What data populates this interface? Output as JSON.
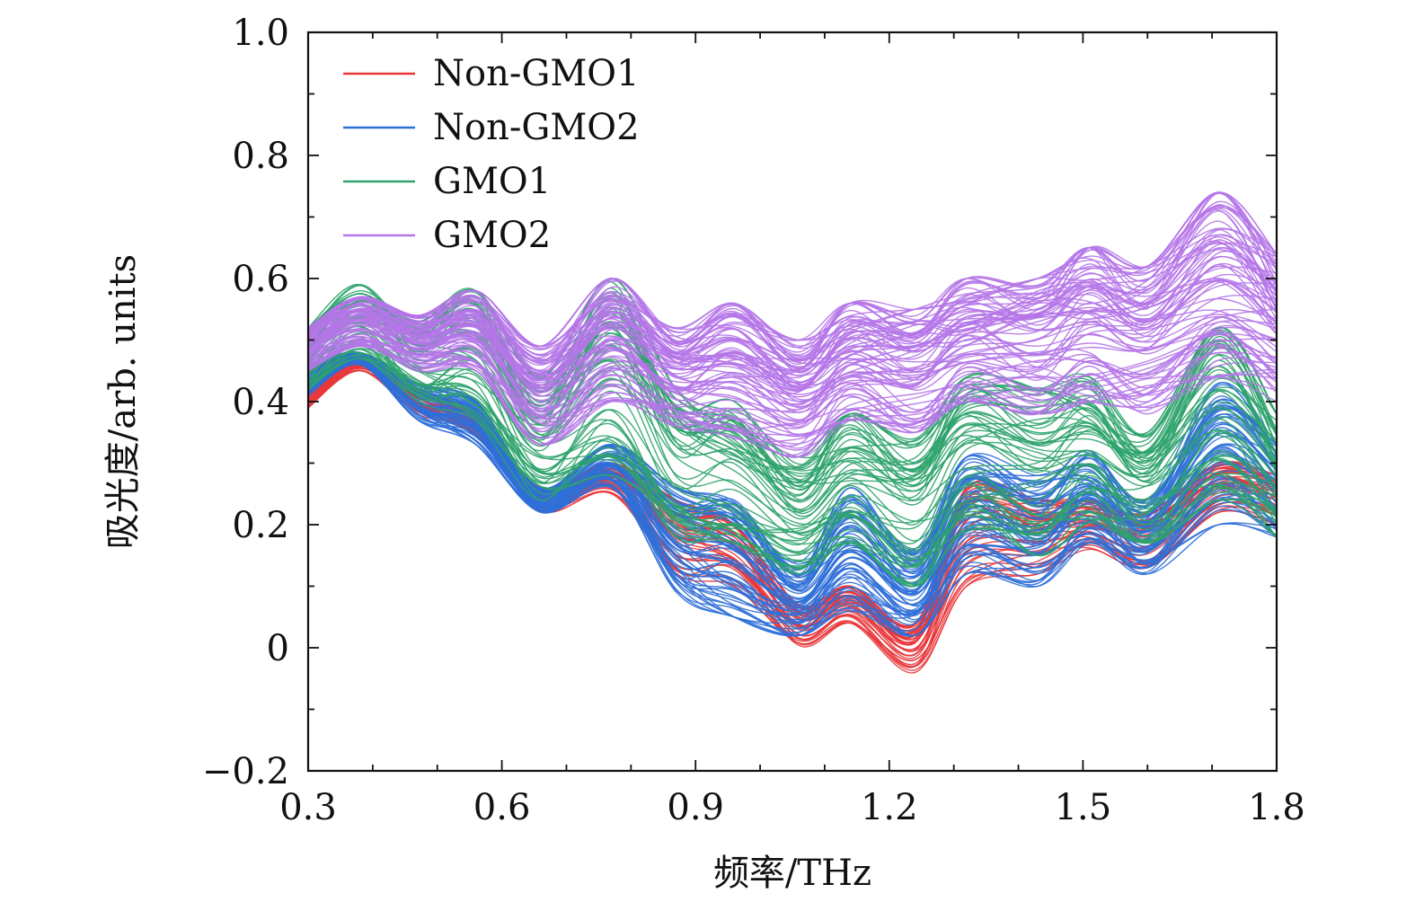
{
  "chart_data": {
    "type": "line",
    "title": "",
    "xlabel": "频率/THz",
    "ylabel": "吸光度/arb. units",
    "xlim": [
      0.3,
      1.8
    ],
    "ylim": [
      -0.2,
      1.0
    ],
    "x_ticks": [
      "0.3",
      "0.6",
      "0.9",
      "1.2",
      "1.5",
      "1.8"
    ],
    "y_ticks": [
      "−0.2",
      "0",
      "0.2",
      "0.4",
      "0.6",
      "0.8",
      "1.0"
    ],
    "y_tick_values": [
      -0.2,
      0,
      0.2,
      0.4,
      0.6,
      0.8,
      1.0
    ],
    "x_tick_values": [
      0.3,
      0.6,
      0.9,
      1.2,
      1.5,
      1.8
    ],
    "grid": false,
    "legend_position": "top-left",
    "x": [
      0.3,
      0.38,
      0.47,
      0.56,
      0.66,
      0.77,
      0.87,
      0.96,
      1.06,
      1.14,
      1.24,
      1.32,
      1.43,
      1.51,
      1.6,
      1.71,
      1.8
    ],
    "series": [
      {
        "name": "Non-GMO1",
        "color": "#e8363a",
        "curves": 40,
        "lower": [
          0.39,
          0.45,
          0.38,
          0.34,
          0.22,
          0.25,
          0.12,
          0.1,
          0.0,
          0.04,
          -0.04,
          0.1,
          0.12,
          0.16,
          0.13,
          0.22,
          0.2
        ],
        "upper": [
          0.42,
          0.47,
          0.42,
          0.38,
          0.26,
          0.3,
          0.24,
          0.2,
          0.07,
          0.1,
          0.04,
          0.26,
          0.24,
          0.24,
          0.22,
          0.3,
          0.28
        ]
      },
      {
        "name": "Non-GMO2",
        "color": "#2f6fd8",
        "curves": 60,
        "lower": [
          0.41,
          0.46,
          0.37,
          0.33,
          0.22,
          0.26,
          0.09,
          0.05,
          0.02,
          0.06,
          0.02,
          0.12,
          0.1,
          0.17,
          0.12,
          0.2,
          0.18
        ],
        "upper": [
          0.46,
          0.48,
          0.43,
          0.4,
          0.26,
          0.33,
          0.26,
          0.24,
          0.14,
          0.26,
          0.16,
          0.31,
          0.28,
          0.32,
          0.24,
          0.43,
          0.33
        ]
      },
      {
        "name": "GMO1",
        "color": "#2ea36c",
        "curves": 55,
        "lower": [
          0.42,
          0.47,
          0.4,
          0.37,
          0.24,
          0.28,
          0.18,
          0.17,
          0.12,
          0.17,
          0.1,
          0.19,
          0.15,
          0.2,
          0.17,
          0.24,
          0.18
        ],
        "upper": [
          0.52,
          0.59,
          0.53,
          0.58,
          0.44,
          0.6,
          0.42,
          0.4,
          0.31,
          0.38,
          0.34,
          0.44,
          0.42,
          0.44,
          0.35,
          0.52,
          0.38
        ]
      },
      {
        "name": "GMO2",
        "color": "#b575e8",
        "curves": 80,
        "lower": [
          0.45,
          0.49,
          0.45,
          0.45,
          0.33,
          0.4,
          0.36,
          0.34,
          0.31,
          0.37,
          0.35,
          0.4,
          0.38,
          0.4,
          0.38,
          0.44,
          0.4
        ],
        "upper": [
          0.52,
          0.57,
          0.54,
          0.58,
          0.49,
          0.6,
          0.52,
          0.56,
          0.5,
          0.56,
          0.55,
          0.6,
          0.6,
          0.65,
          0.62,
          0.74,
          0.64
        ]
      }
    ]
  }
}
